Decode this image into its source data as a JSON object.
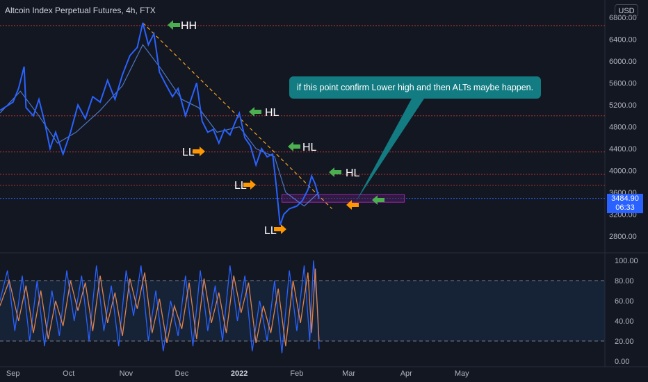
{
  "title": "Altcoin Index Perpetual Futures, 4h, FTX",
  "currency_button": "USD",
  "callout_text": "if this point confirm Lower high and then ALTs maybe happen.",
  "last_price": "3484.90",
  "countdown": "06:33",
  "colors": {
    "background": "#131722",
    "price_line": "#2962ff",
    "ma_line": "#5b8def",
    "trendline": "#f5a623",
    "green_arrow": "#4caf50",
    "orange_arrow": "#ff9800",
    "support_level": "#b8312f",
    "zone_border": "#9c27b0",
    "callout_bg": "#137c82",
    "stoch_k": "#2962ff",
    "stoch_d": "#e0834a"
  },
  "annotations": [
    {
      "label": "HH",
      "color": "green"
    },
    {
      "label": "HL",
      "color": "green"
    },
    {
      "label": "HL",
      "color": "green"
    },
    {
      "label": "HL",
      "color": "green"
    },
    {
      "label": "LL",
      "color": "orange"
    },
    {
      "label": "LL",
      "color": "orange"
    },
    {
      "label": "LL",
      "color": "orange"
    }
  ],
  "chart_data": [
    {
      "type": "line",
      "x_ticks": [
        "Sep",
        "Oct",
        "Nov",
        "Dec",
        "2022",
        "Feb",
        "Mar",
        "Apr",
        "May"
      ],
      "y_ticks": [
        "6800.00",
        "6400.00",
        "6000.00",
        "5600.00",
        "5200.00",
        "4800.00",
        "4400.00",
        "4000.00",
        "3600.00",
        "3200.00",
        "2800.00"
      ],
      "ylim": [
        2700,
        6900
      ],
      "horizontal_levels": [
        6650,
        5000,
        4340,
        3930,
        3730,
        3490
      ],
      "zone": {
        "x_start": "2022-01-24",
        "x_end": "2022-03-31",
        "y_low": 3420,
        "y_high": 3560
      },
      "series": [
        {
          "values": [
            [
              "2021-08-25",
              5100
            ],
            [
              "2021-09-01",
              5250
            ],
            [
              "2021-09-04",
              5500
            ],
            [
              "2021-09-07",
              5900
            ],
            [
              "2021-09-08",
              5150
            ],
            [
              "2021-09-12",
              5000
            ],
            [
              "2021-09-15",
              5300
            ],
            [
              "2021-09-18",
              4900
            ],
            [
              "2021-09-21",
              4400
            ],
            [
              "2021-09-24",
              4700
            ],
            [
              "2021-09-28",
              4300
            ],
            [
              "2021-10-02",
              4700
            ],
            [
              "2021-10-06",
              5200
            ],
            [
              "2021-10-10",
              4950
            ],
            [
              "2021-10-14",
              5350
            ],
            [
              "2021-10-18",
              5250
            ],
            [
              "2021-10-22",
              5650
            ],
            [
              "2021-10-26",
              5300
            ],
            [
              "2021-10-30",
              5750
            ],
            [
              "2021-11-03",
              6100
            ],
            [
              "2021-11-07",
              6250
            ],
            [
              "2021-11-10",
              6700
            ],
            [
              "2021-11-13",
              6300
            ],
            [
              "2021-11-16",
              6500
            ],
            [
              "2021-11-19",
              5800
            ],
            [
              "2021-11-22",
              5600
            ],
            [
              "2021-11-26",
              5350
            ],
            [
              "2021-11-29",
              5500
            ],
            [
              "2021-12-03",
              5000
            ],
            [
              "2021-12-06",
              5300
            ],
            [
              "2021-12-09",
              5600
            ],
            [
              "2021-12-12",
              4900
            ],
            [
              "2021-12-15",
              4700
            ],
            [
              "2021-12-18",
              4750
            ],
            [
              "2021-12-21",
              4500
            ],
            [
              "2021-12-24",
              4750
            ],
            [
              "2021-12-27",
              4650
            ],
            [
              "2021-12-30",
              4900
            ],
            [
              "2022-01-01",
              5050
            ],
            [
              "2022-01-04",
              4600
            ],
            [
              "2022-01-07",
              4450
            ],
            [
              "2022-01-10",
              4100
            ],
            [
              "2022-01-13",
              4400
            ],
            [
              "2022-01-16",
              4250
            ],
            [
              "2022-01-19",
              4300
            ],
            [
              "2022-01-21",
              3700
            ],
            [
              "2022-01-23",
              3000
            ],
            [
              "2022-01-25",
              3200
            ],
            [
              "2022-01-28",
              3300
            ],
            [
              "2022-02-01",
              3350
            ],
            [
              "2022-02-04",
              3450
            ],
            [
              "2022-02-07",
              3650
            ],
            [
              "2022-02-09",
              3900
            ],
            [
              "2022-02-11",
              3750
            ],
            [
              "2022-02-13",
              3484.9
            ]
          ]
        },
        {
          "values": [
            [
              "2021-08-25",
              5050
            ],
            [
              "2021-09-05",
              5450
            ],
            [
              "2021-09-15",
              5000
            ],
            [
              "2021-09-25",
              4500
            ],
            [
              "2021-10-05",
              4700
            ],
            [
              "2021-10-18",
              5100
            ],
            [
              "2021-10-30",
              5550
            ],
            [
              "2021-11-10",
              6300
            ],
            [
              "2021-11-20",
              5850
            ],
            [
              "2021-12-01",
              5300
            ],
            [
              "2021-12-10",
              5150
            ],
            [
              "2021-12-20",
              4700
            ],
            [
              "2022-01-01",
              4800
            ],
            [
              "2022-01-10",
              4400
            ],
            [
              "2022-01-20",
              4250
            ],
            [
              "2022-01-26",
              3600
            ],
            [
              "2022-02-05",
              3350
            ],
            [
              "2022-02-13",
              3600
            ]
          ]
        }
      ],
      "trendline": [
        [
          "2021-11-10",
          6700
        ],
        [
          "2022-02-20",
          3300
        ]
      ]
    },
    {
      "type": "line",
      "x_ticks": [
        "Sep",
        "Oct",
        "Nov",
        "Dec",
        "2022",
        "Feb",
        "Mar",
        "Apr",
        "May"
      ],
      "y_ticks": [
        "100.00",
        "80.00",
        "60.00",
        "40.00",
        "20.00",
        "0.00"
      ],
      "ylim": [
        0,
        100
      ],
      "bands": [
        80,
        20
      ],
      "series": [
        {
          "values": [
            [
              "2021-08-25",
              60
            ],
            [
              "2021-08-29",
              90
            ],
            [
              "2021-09-02",
              30
            ],
            [
              "2021-09-06",
              85
            ],
            [
              "2021-09-10",
              20
            ],
            [
              "2021-09-14",
              80
            ],
            [
              "2021-09-18",
              15
            ],
            [
              "2021-09-22",
              70
            ],
            [
              "2021-09-26",
              25
            ],
            [
              "2021-09-30",
              90
            ],
            [
              "2021-10-04",
              40
            ],
            [
              "2021-10-08",
              85
            ],
            [
              "2021-10-12",
              20
            ],
            [
              "2021-10-16",
              95
            ],
            [
              "2021-10-20",
              30
            ],
            [
              "2021-10-24",
              75
            ],
            [
              "2021-10-28",
              15
            ],
            [
              "2021-11-01",
              90
            ],
            [
              "2021-11-05",
              45
            ],
            [
              "2021-11-09",
              95
            ],
            [
              "2021-11-13",
              20
            ],
            [
              "2021-11-17",
              70
            ],
            [
              "2021-11-21",
              10
            ],
            [
              "2021-11-25",
              60
            ],
            [
              "2021-11-29",
              25
            ],
            [
              "2021-12-03",
              85
            ],
            [
              "2021-12-07",
              15
            ],
            [
              "2021-12-11",
              90
            ],
            [
              "2021-12-15",
              30
            ],
            [
              "2021-12-19",
              75
            ],
            [
              "2021-12-23",
              20
            ],
            [
              "2021-12-27",
              95
            ],
            [
              "2021-12-31",
              40
            ],
            [
              "2022-01-04",
              85
            ],
            [
              "2022-01-08",
              10
            ],
            [
              "2022-01-12",
              60
            ],
            [
              "2022-01-16",
              20
            ],
            [
              "2022-01-20",
              80
            ],
            [
              "2022-01-24",
              8
            ],
            [
              "2022-01-28",
              90
            ],
            [
              "2022-02-01",
              30
            ],
            [
              "2022-02-05",
              95
            ],
            [
              "2022-02-08",
              20
            ],
            [
              "2022-02-10",
              100
            ],
            [
              "2022-02-12",
              55
            ],
            [
              "2022-02-13",
              12
            ]
          ]
        },
        {
          "values": [
            [
              "2021-08-25",
              55
            ],
            [
              "2021-08-30",
              80
            ],
            [
              "2021-09-04",
              40
            ],
            [
              "2021-09-08",
              75
            ],
            [
              "2021-09-12",
              28
            ],
            [
              "2021-09-16",
              70
            ],
            [
              "2021-09-20",
              22
            ],
            [
              "2021-09-24",
              60
            ],
            [
              "2021-09-28",
              35
            ],
            [
              "2021-10-02",
              80
            ],
            [
              "2021-10-06",
              50
            ],
            [
              "2021-10-10",
              78
            ],
            [
              "2021-10-14",
              30
            ],
            [
              "2021-10-18",
              85
            ],
            [
              "2021-10-22",
              38
            ],
            [
              "2021-10-26",
              68
            ],
            [
              "2021-10-30",
              25
            ],
            [
              "2021-11-03",
              82
            ],
            [
              "2021-11-07",
              52
            ],
            [
              "2021-11-11",
              88
            ],
            [
              "2021-11-15",
              28
            ],
            [
              "2021-11-19",
              62
            ],
            [
              "2021-11-23",
              18
            ],
            [
              "2021-11-27",
              55
            ],
            [
              "2021-12-01",
              32
            ],
            [
              "2021-12-05",
              78
            ],
            [
              "2021-12-09",
              22
            ],
            [
              "2021-12-13",
              82
            ],
            [
              "2021-12-17",
              38
            ],
            [
              "2021-12-21",
              68
            ],
            [
              "2021-12-25",
              28
            ],
            [
              "2021-12-29",
              85
            ],
            [
              "2022-01-02",
              48
            ],
            [
              "2022-01-06",
              78
            ],
            [
              "2022-01-10",
              18
            ],
            [
              "2022-01-14",
              55
            ],
            [
              "2022-01-18",
              28
            ],
            [
              "2022-01-22",
              72
            ],
            [
              "2022-01-26",
              15
            ],
            [
              "2022-01-30",
              80
            ],
            [
              "2022-02-03",
              38
            ],
            [
              "2022-02-07",
              88
            ],
            [
              "2022-02-09",
              28
            ],
            [
              "2022-02-11",
              92
            ],
            [
              "2022-02-13",
              20
            ]
          ]
        }
      ]
    }
  ]
}
